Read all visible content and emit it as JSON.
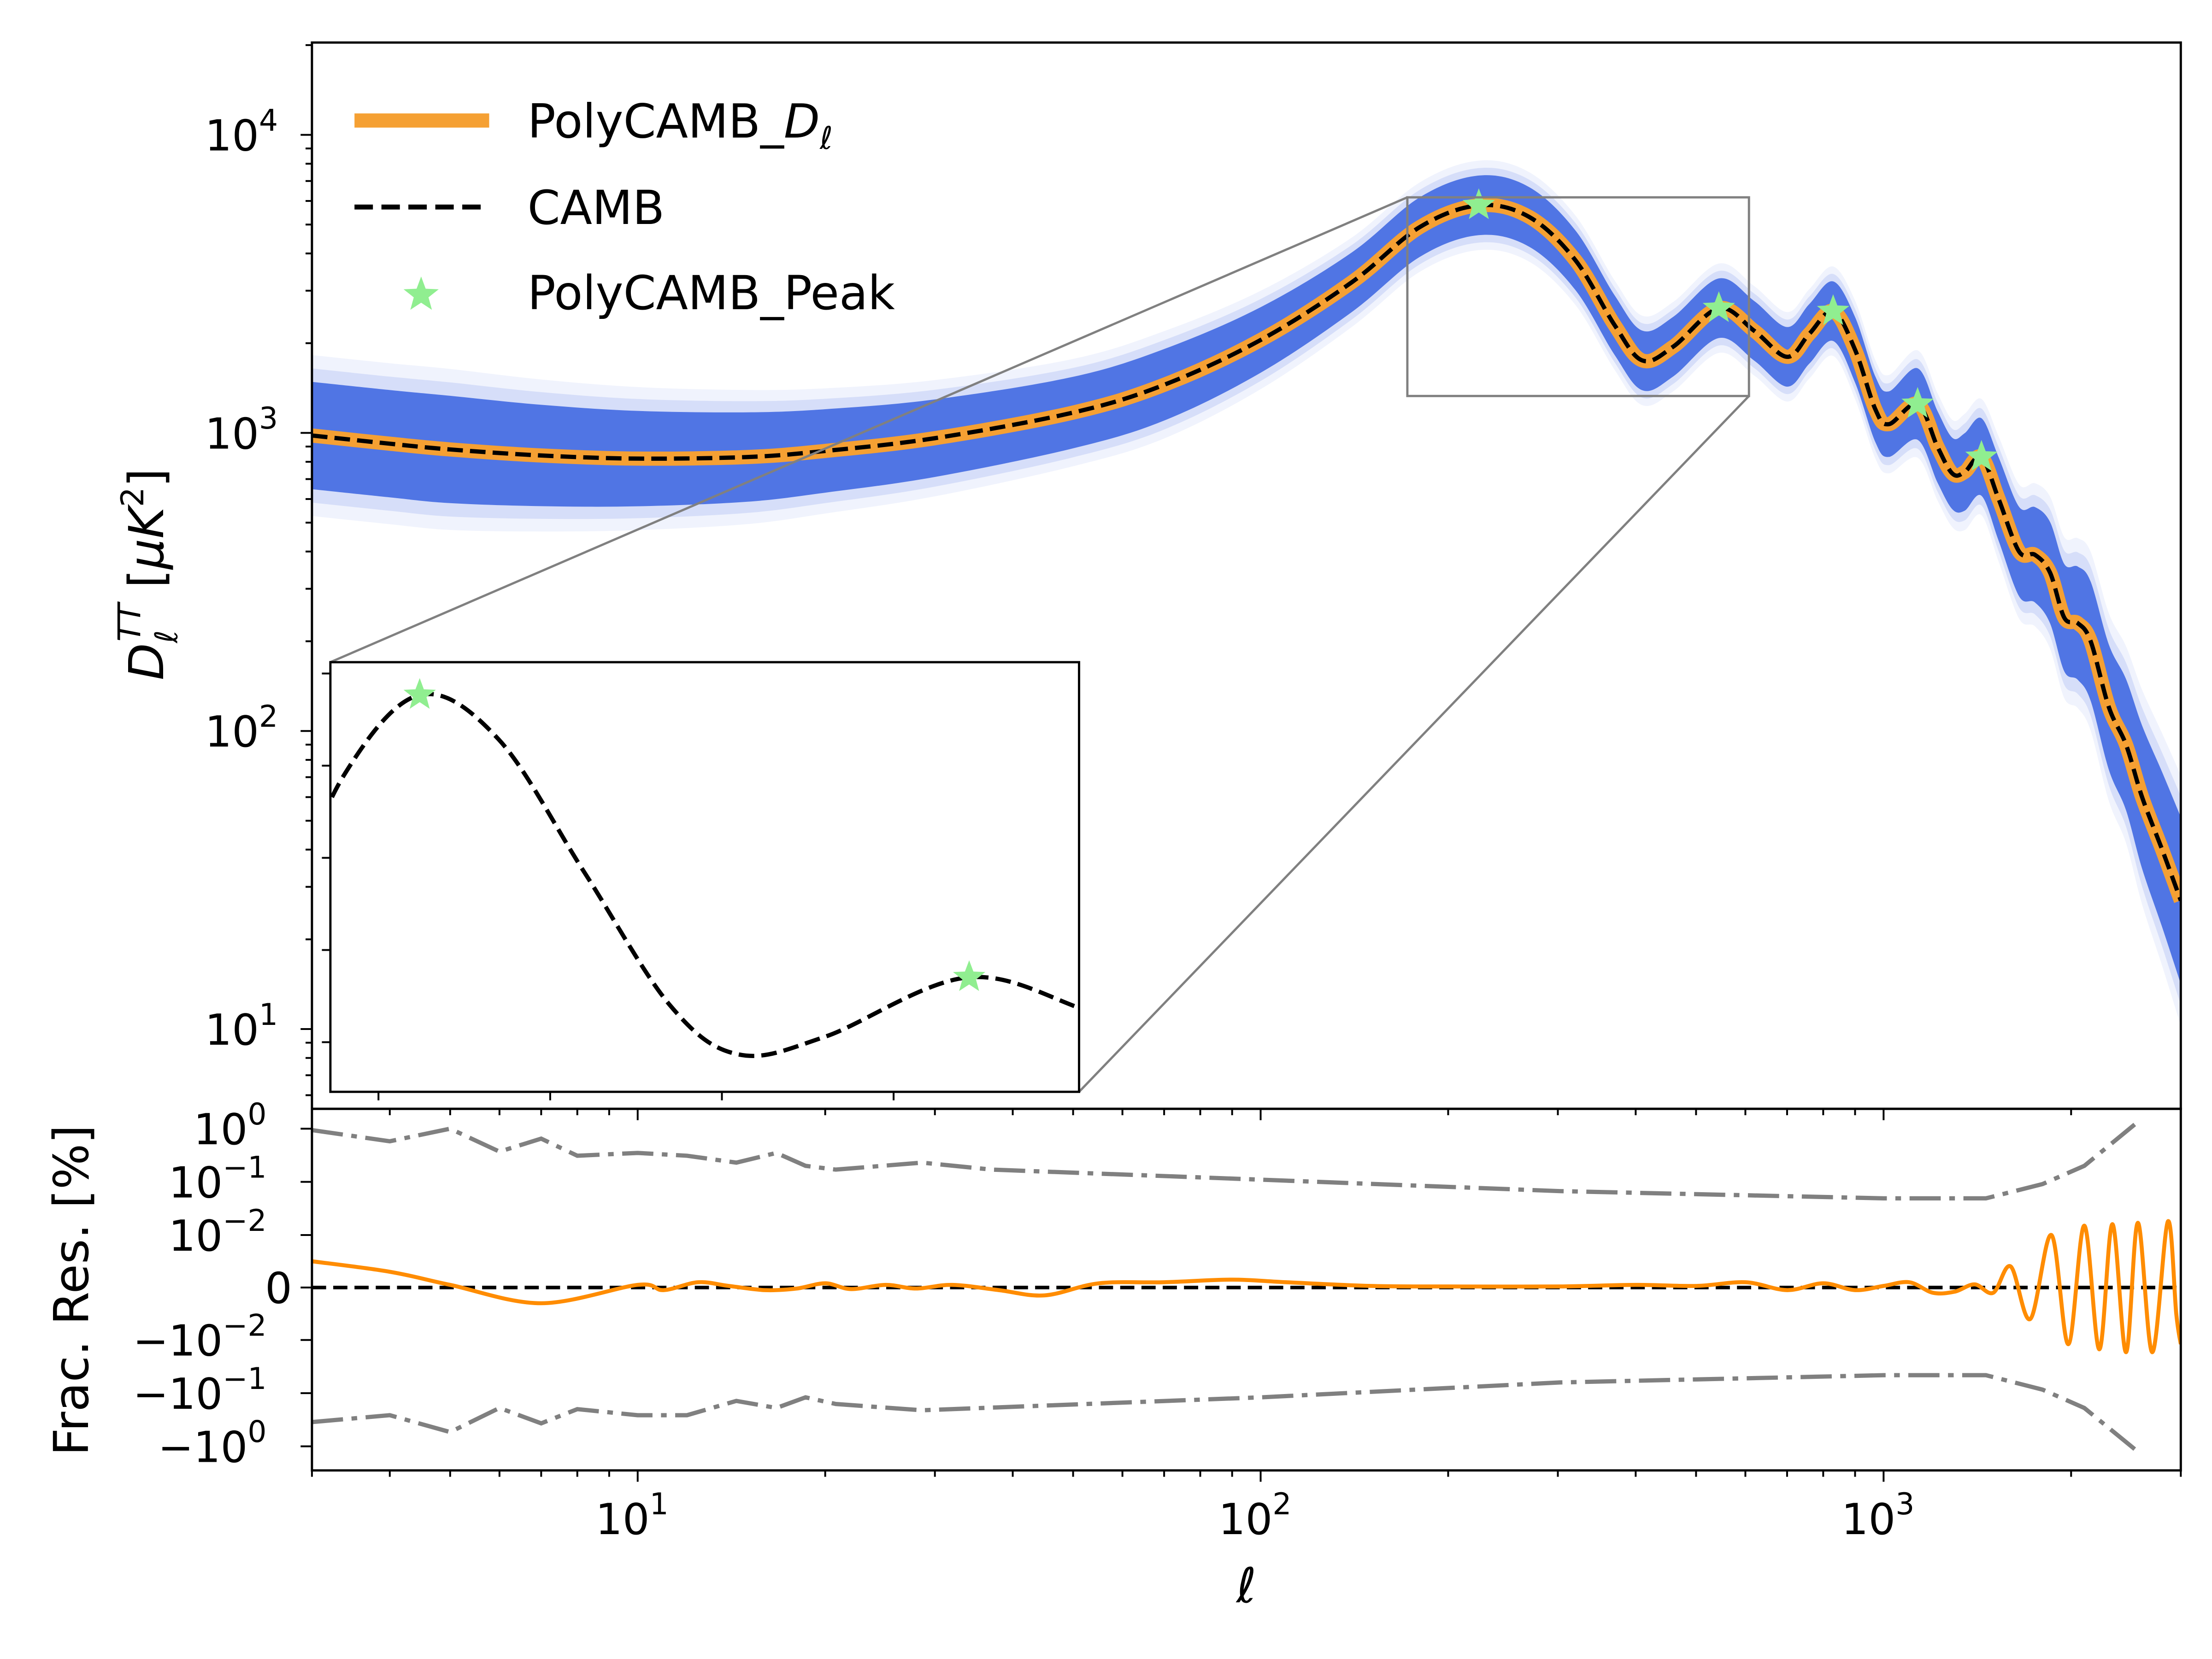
{
  "chart_data": [
    {
      "type": "line",
      "panel": "main",
      "xscale": "log",
      "yscale": "log",
      "xlim": [
        3,
        3000
      ],
      "ylim": [
        5.4,
        20400
      ],
      "grid": false,
      "legend_placement": "top-left",
      "xticks": [
        {
          "base": "10",
          "exp": "1",
          "value": 10
        },
        {
          "base": "10",
          "exp": "2",
          "value": 100
        },
        {
          "base": "10",
          "exp": "3",
          "value": 1000
        }
      ],
      "yticks": [
        {
          "base": "10",
          "exp": "4",
          "value": 10000
        },
        {
          "base": "10",
          "exp": "3",
          "value": 1000
        },
        {
          "base": "10",
          "exp": "2",
          "value": 100
        },
        {
          "base": "10",
          "exp": "1",
          "value": 10
        }
      ],
      "ylabel": {
        "D": "D",
        "sub": "ℓ",
        "sup": "TT",
        "unit_open": " [",
        "unit": "μK",
        "unit_sup": "2",
        "unit_close": "]"
      },
      "legend": [
        {
          "prefix": "PolyCAMB_",
          "math": "D",
          "sub": "ℓ",
          "style": "solid-thick",
          "color": "#f5a033"
        },
        {
          "label": "CAMB",
          "style": "dashed",
          "color": "#000000"
        },
        {
          "label": "PolyCAMB_Peak",
          "style": "star",
          "color": "#90ee90"
        }
      ],
      "band_color": "#4169e1",
      "camb": {
        "ell": [
          3,
          4,
          5,
          7,
          10,
          15,
          20,
          30,
          50,
          70,
          100,
          140,
          180,
          224,
          270,
          320,
          370,
          410,
          460,
          544,
          620,
          700,
          760,
          830,
          900,
          970,
          1020,
          1134,
          1220,
          1290,
          1350,
          1436,
          1530,
          1650,
          1750,
          1850,
          1950,
          2050,
          2150,
          2300,
          2450,
          2600,
          2800,
          3000
        ],
        "D": [
          980,
          920,
          880,
          840,
          820,
          830,
          870,
          960,
          1170,
          1450,
          2050,
          3200,
          4900,
          5800,
          5300,
          3800,
          2300,
          1750,
          1950,
          2620,
          2200,
          1800,
          2150,
          2560,
          1900,
          1200,
          1070,
          1250,
          900,
          730,
          740,
          830,
          600,
          400,
          390,
          340,
          240,
          230,
          200,
          120,
          90,
          60,
          40,
          27
        ],
        "band_spread_dex": [
          0.18,
          0.18,
          0.18,
          0.17,
          0.16,
          0.15,
          0.14,
          0.13,
          0.12,
          0.12,
          0.11,
          0.1,
          0.1,
          0.1,
          0.1,
          0.1,
          0.1,
          0.1,
          0.1,
          0.1,
          0.1,
          0.1,
          0.1,
          0.1,
          0.11,
          0.11,
          0.11,
          0.12,
          0.12,
          0.12,
          0.13,
          0.13,
          0.14,
          0.15,
          0.16,
          0.17,
          0.18,
          0.19,
          0.2,
          0.21,
          0.22,
          0.24,
          0.26,
          0.28
        ]
      },
      "peaks": {
        "ell": [
          224,
          544,
          830,
          1134,
          1436
        ],
        "D": [
          5800,
          2620,
          2560,
          1250,
          830
        ]
      },
      "inset": {
        "xscale": "linear",
        "yscale": "linear",
        "xlim": [
          172,
          608
        ],
        "ylim": [
          1330,
          6170
        ],
        "xticks": [
          200,
          300,
          400,
          500
        ]
      }
    },
    {
      "type": "line",
      "panel": "residual",
      "xscale": "log",
      "yscale": "symlog",
      "linthresh": 0.01,
      "xlim": [
        3,
        3000
      ],
      "ylim": [
        -2.8,
        2.35
      ],
      "xlabel": "ℓ",
      "ylabel": "Frac. Res. [%]",
      "yticks": [
        {
          "sign": "",
          "base": "10",
          "exp": "0",
          "value": 1
        },
        {
          "sign": "",
          "base": "10",
          "exp": "−1",
          "value": 0.1
        },
        {
          "sign": "",
          "base": "10",
          "exp": "−2",
          "value": 0.01
        },
        {
          "sign": "",
          "base": "0",
          "exp": "",
          "value": 0
        },
        {
          "sign": "−",
          "base": "10",
          "exp": "−2",
          "value": -0.01
        },
        {
          "sign": "−",
          "base": "10",
          "exp": "−1",
          "value": -0.1
        },
        {
          "sign": "−",
          "base": "10",
          "exp": "0",
          "value": -1
        }
      ],
      "residual": {
        "color": "#ff8c00",
        "ell": [
          3,
          4,
          5,
          7,
          10,
          11,
          12.5,
          14,
          16,
          18,
          20,
          22,
          25,
          28,
          32,
          38,
          45,
          55,
          70,
          90,
          110,
          150,
          200,
          300,
          400,
          500,
          600,
          700,
          800,
          900,
          1000,
          1100,
          1200,
          1300,
          1400,
          1500,
          1600,
          1720,
          1860,
          1980,
          2100,
          2220,
          2330,
          2450,
          2560,
          2700,
          2860,
          2950,
          3000
        ],
        "value": [
          0.005,
          0.003,
          0.0005,
          -0.003,
          0.0005,
          -0.0005,
          0.001,
          0.0003,
          -0.0005,
          -0.0002,
          0.0008,
          -0.0003,
          0.0005,
          -0.0002,
          0.0005,
          -0.0005,
          -0.0015,
          0.0008,
          0.001,
          0.0015,
          0.001,
          0.0003,
          0.0002,
          0.0002,
          0.0005,
          0.0003,
          0.001,
          -0.0005,
          0.0008,
          -0.0005,
          0.0003,
          0.001,
          -0.001,
          -0.0008,
          0.0006,
          -0.001,
          0.004,
          -0.006,
          0.01,
          -0.012,
          0.015,
          -0.015,
          0.016,
          -0.017,
          0.017,
          -0.017,
          0.018,
          -0.005,
          -0.012
        ]
      },
      "upper_bound": {
        "color": "#808080",
        "ell": [
          3,
          4,
          5,
          6,
          7,
          8,
          10,
          12,
          14.4,
          16.7,
          18.6,
          20.8,
          28.6,
          37,
          100,
          302,
          1000,
          1460,
          1800,
          2100,
          2530
        ],
        "value": [
          0.94,
          0.58,
          1.0,
          0.37,
          0.65,
          0.31,
          0.35,
          0.31,
          0.23,
          0.35,
          0.2,
          0.17,
          0.23,
          0.17,
          0.11,
          0.067,
          0.049,
          0.049,
          0.091,
          0.2,
          1.2
        ]
      },
      "lower_bound": {
        "color": "#808080",
        "ell": [
          3,
          4,
          5,
          6,
          7,
          8,
          10,
          12,
          14.4,
          16.7,
          18.6,
          20.8,
          28.6,
          100,
          302,
          1000,
          1460,
          1800,
          2100,
          2530
        ],
        "value": [
          -0.35,
          -0.26,
          -0.54,
          -0.19,
          -0.37,
          -0.2,
          -0.26,
          -0.26,
          -0.14,
          -0.19,
          -0.12,
          -0.16,
          -0.21,
          -0.12,
          -0.063,
          -0.046,
          -0.046,
          -0.086,
          -0.19,
          -1.13
        ]
      },
      "zero_line": {
        "value": 0,
        "style": "dashed",
        "color": "#000000"
      }
    }
  ]
}
